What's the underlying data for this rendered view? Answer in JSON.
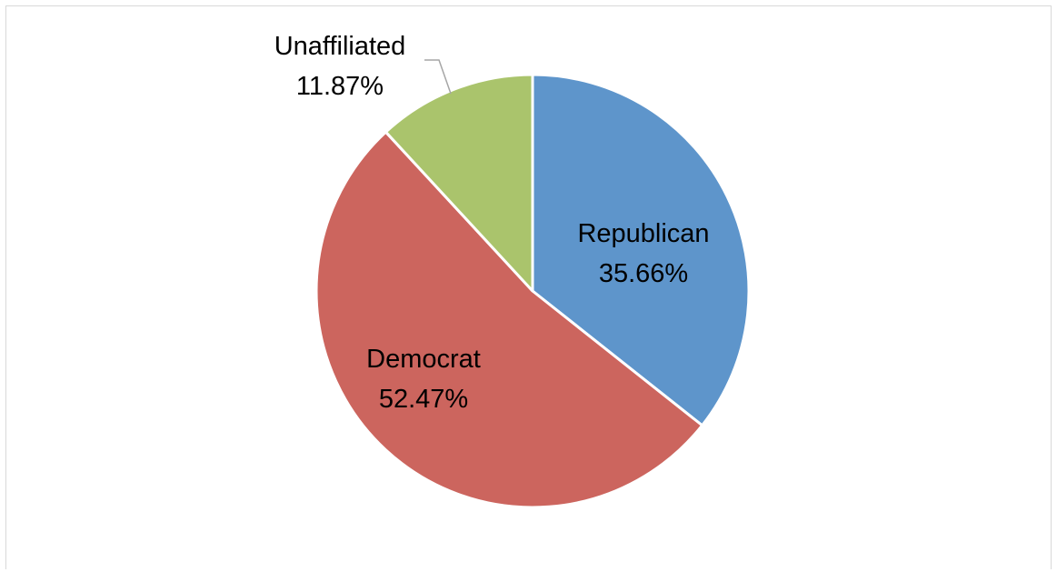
{
  "chart_data": {
    "type": "pie",
    "title": "",
    "slices": [
      {
        "label": "Republican",
        "value": 35.66,
        "percent_text": "35.66%",
        "color": "#5E95CB"
      },
      {
        "label": "Democrat",
        "value": 52.47,
        "percent_text": "52.47%",
        "color": "#CC655E"
      },
      {
        "label": "Unaffiliated",
        "value": 11.87,
        "percent_text": "11.87%",
        "color": "#AAC46C"
      }
    ],
    "start_angle": "12 o'clock",
    "direction": "clockwise",
    "labels": "data labels with category name and percentage",
    "legend": "none"
  }
}
